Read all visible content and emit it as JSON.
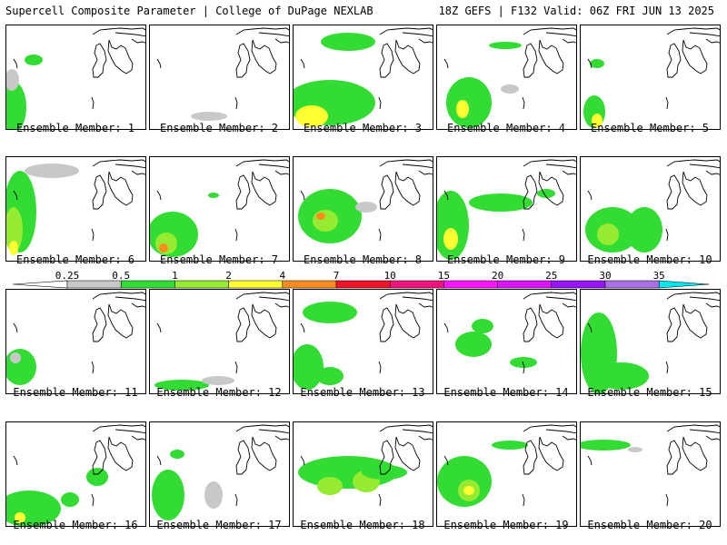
{
  "header": {
    "title": "Supercell Composite Parameter | College of DuPage NEXLAB",
    "run_info": "18Z GEFS | F132 Valid: 06Z FRI JUN 13 2025"
  },
  "panels": [
    {
      "label": "Ensemble Member: 1"
    },
    {
      "label": "Ensemble Member: 2"
    },
    {
      "label": "Ensemble Member: 3"
    },
    {
      "label": "Ensemble Member: 4"
    },
    {
      "label": "Ensemble Member: 5"
    },
    {
      "label": "Ensemble Member: 6"
    },
    {
      "label": "Ensemble Member: 7"
    },
    {
      "label": "Ensemble Member: 8"
    },
    {
      "label": "Ensemble Member: 9"
    },
    {
      "label": "Ensemble Member: 10"
    },
    {
      "label": "Ensemble Member: 11"
    },
    {
      "label": "Ensemble Member: 12"
    },
    {
      "label": "Ensemble Member: 13"
    },
    {
      "label": "Ensemble Member: 14"
    },
    {
      "label": "Ensemble Member: 15"
    },
    {
      "label": "Ensemble Member: 16"
    },
    {
      "label": "Ensemble Member: 17"
    },
    {
      "label": "Ensemble Member: 18"
    },
    {
      "label": "Ensemble Member: 19"
    },
    {
      "label": "Ensemble Member: 20"
    }
  ],
  "colorbar": {
    "labels": [
      "0.25",
      "0.5",
      "1",
      "2",
      "4",
      "7",
      "10",
      "15",
      "20",
      "25",
      "30",
      "35"
    ],
    "colors": [
      "#c8c8c8",
      "#32dc32",
      "#96eb32",
      "#ffff32",
      "#ff8c1e",
      "#f01428",
      "#f0147d",
      "#ff14ff",
      "#dc14ff",
      "#9614ff",
      "#aa6ee6",
      "#00e6f0"
    ]
  }
}
